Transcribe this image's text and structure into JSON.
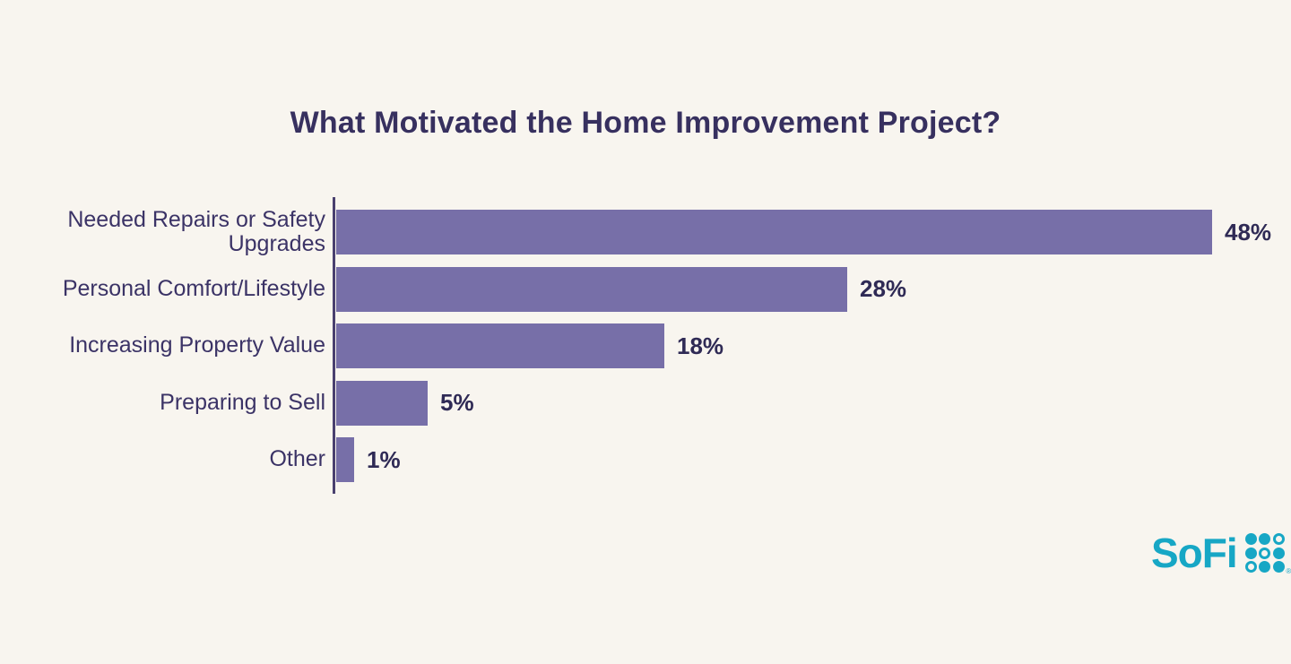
{
  "page": {
    "background_color": "#f8f5ef"
  },
  "chart_data": {
    "type": "bar",
    "orientation": "horizontal",
    "title": "What Motivated the Home Improvement Project?",
    "categories": [
      "Needed Repairs or Safety Upgrades",
      "Personal Comfort/Lifestyle",
      "Increasing Property Value",
      "Preparing to Sell",
      "Other"
    ],
    "values": [
      48,
      28,
      18,
      5,
      1
    ],
    "value_labels": [
      "48%",
      "28%",
      "18%",
      "5%",
      "1%"
    ],
    "xlabel": "",
    "ylabel": "",
    "xlim": [
      0,
      52
    ],
    "grid": false,
    "legend": false,
    "bar_color": "#776fa8",
    "axis_color": "#4a406f",
    "title_color": "#37305f",
    "label_color": "#3b3366",
    "value_label_color": "#2f2a55"
  },
  "branding": {
    "logo_text": "SoFi",
    "logo_color": "#17a7c5",
    "trademark_symbol": "®",
    "logo_grid_icon": "sofi-dot-grid",
    "logo_grid_pattern": [
      [
        1,
        1,
        0
      ],
      [
        1,
        0,
        1
      ],
      [
        0,
        1,
        1
      ]
    ]
  }
}
